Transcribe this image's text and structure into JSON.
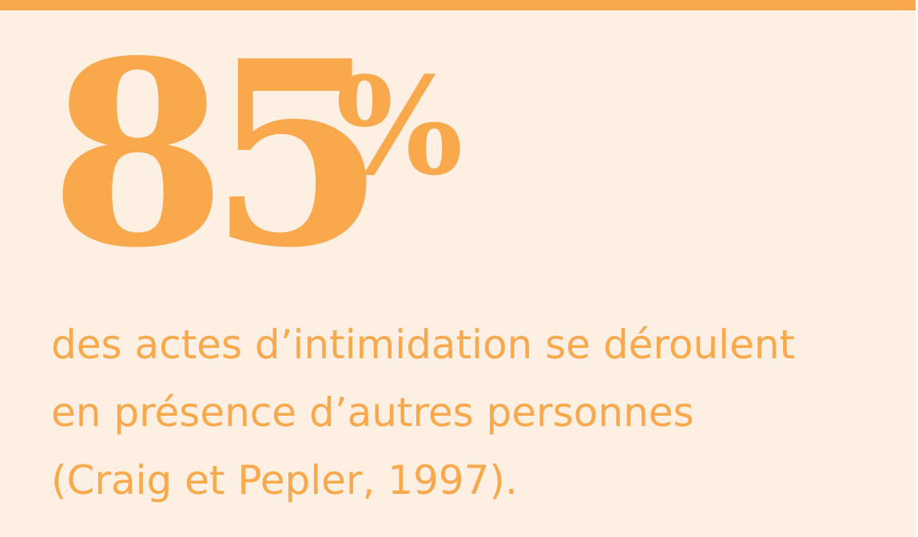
{
  "stat": {
    "number": "85",
    "unit": "%"
  },
  "caption": {
    "lines": [
      "des actes d’intimidation se déroulent",
      "en présence d’autres personnes",
      "(Craig et Pepler, 1997)."
    ]
  },
  "colors": {
    "accent": "#f9a84b",
    "background": "#fdf0e2"
  }
}
